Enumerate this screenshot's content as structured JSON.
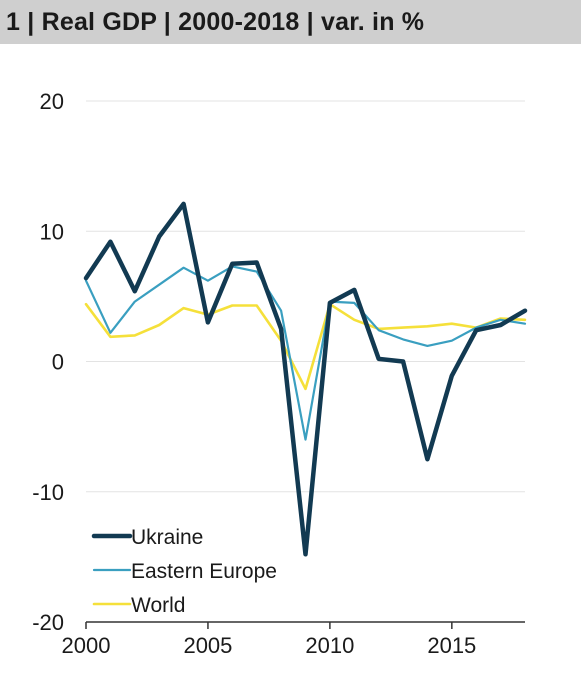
{
  "header": {
    "title": "1 | Real GDP | 2000-2018 | var. in %"
  },
  "chart_data": {
    "type": "line",
    "title": "1 | Real GDP | 2000-2018 | var. in %",
    "x": [
      2000,
      2001,
      2002,
      2003,
      2004,
      2005,
      2006,
      2007,
      2008,
      2009,
      2010,
      2011,
      2012,
      2013,
      2014,
      2015,
      2016,
      2017,
      2018
    ],
    "xlim": [
      2000,
      2018
    ],
    "ylim": [
      -20,
      20
    ],
    "x_ticks": [
      2000,
      2005,
      2010,
      2015
    ],
    "y_ticks": [
      20,
      10,
      0,
      -10,
      -20
    ],
    "grid": "horizontal",
    "legend_position": "bottom-left",
    "series": [
      {
        "name": "Ukraine",
        "color": "#123a52",
        "values": [
          6.4,
          9.2,
          5.4,
          9.6,
          12.1,
          3.0,
          7.5,
          7.6,
          2.5,
          -14.8,
          4.5,
          5.5,
          0.2,
          0.0,
          -7.5,
          -1.1,
          2.4,
          2.8,
          3.9
        ]
      },
      {
        "name": "Eastern Europe",
        "color": "#3a9fc0",
        "values": [
          6.2,
          2.2,
          4.6,
          5.9,
          7.2,
          6.2,
          7.3,
          6.9,
          3.9,
          -6.0,
          4.6,
          4.5,
          2.4,
          1.7,
          1.2,
          1.6,
          2.6,
          3.2,
          2.9
        ]
      },
      {
        "name": "World",
        "color": "#f5e03a",
        "values": [
          4.4,
          1.9,
          2.0,
          2.8,
          4.1,
          3.6,
          4.3,
          4.3,
          1.6,
          -2.1,
          4.4,
          3.2,
          2.5,
          2.6,
          2.7,
          2.9,
          2.6,
          3.3,
          3.2
        ]
      }
    ]
  }
}
